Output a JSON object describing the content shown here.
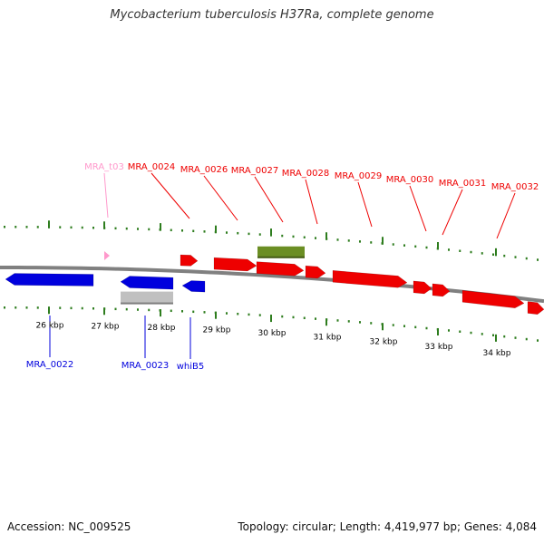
{
  "title": "Mycobacterium tuberculosis H37Ra, complete genome",
  "footer": {
    "accession": "Accession: NC_009525",
    "summary": "Topology: circular; Length: 4,419,977 bp; Genes: 4,084"
  },
  "colors": {
    "forward_gene": "#ee0000",
    "reverse_gene": "#0000dd",
    "trna": "#ff99cc",
    "rrna_or_misc": "#6b8e23",
    "pseudogene": "#c0c0c0",
    "tick": "#2e7d1e",
    "backbone": "#808080"
  },
  "ticks": [
    "26 kbp",
    "27 kbp",
    "28 kbp",
    "29 kbp",
    "30 kbp",
    "31 kbp",
    "32 kbp",
    "33 kbp",
    "34 kbp"
  ],
  "forward_labels": [
    "MRA_t03",
    "MRA_0024",
    "MRA_0026",
    "MRA_0027",
    "MRA_0028",
    "MRA_0029",
    "MRA_0030",
    "MRA_0031",
    "MRA_0032"
  ],
  "reverse_labels": [
    "MRA_0022",
    "MRA_0023",
    "whiB5"
  ]
}
